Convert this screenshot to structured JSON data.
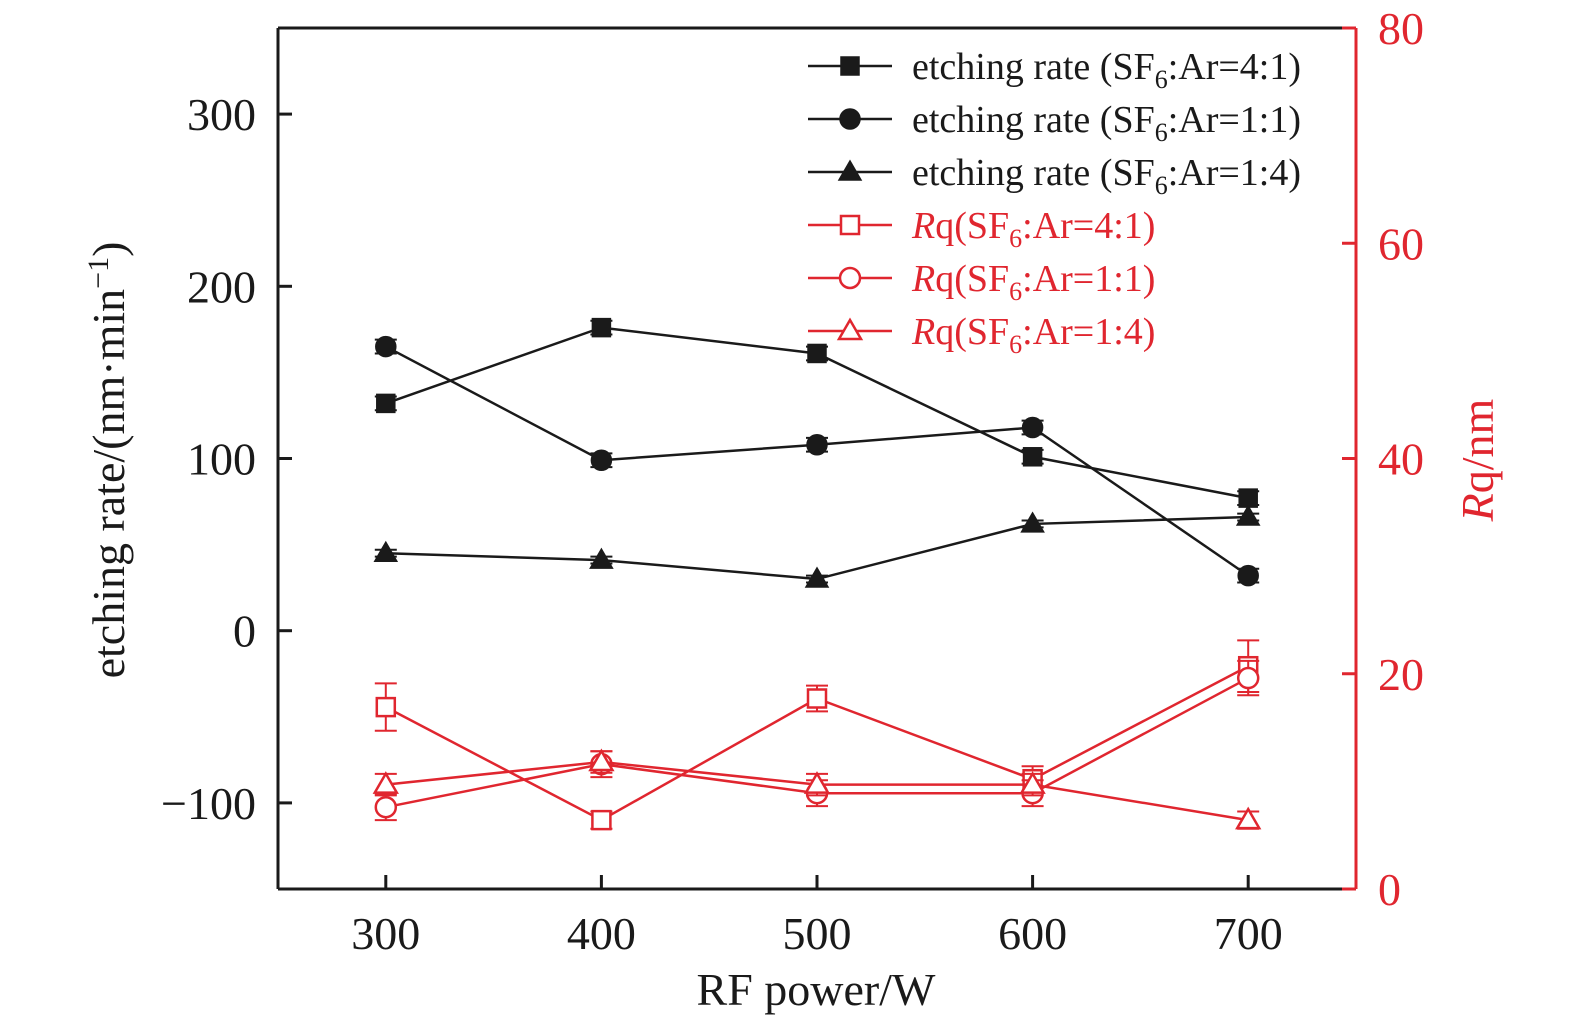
{
  "chart_data": {
    "type": "line",
    "xlabel": "RF power/W",
    "x": [
      300,
      400,
      500,
      600,
      700
    ],
    "xlim": [
      250,
      750
    ],
    "xticks": [
      "300",
      "400",
      "500",
      "600",
      "700"
    ],
    "y_left": {
      "label_prefix": "etching rate/(nm·min",
      "label_sup": "−1",
      "label_suffix": ")",
      "lim": [
        -150,
        350
      ],
      "ticks": [
        300,
        200,
        100,
        0,
        -100
      ],
      "tick_labels": [
        "300",
        "200",
        "100",
        "0",
        "−100"
      ],
      "color": "#1a1a1a"
    },
    "y_right": {
      "label_italic": "R",
      "label_rest": "q/nm",
      "lim": [
        0,
        80
      ],
      "ticks": [
        80,
        60,
        40,
        20,
        0
      ],
      "tick_labels": [
        "80",
        "60",
        "40",
        "20",
        "0"
      ],
      "color": "#e0262f"
    },
    "legend_position": "top-right",
    "series": [
      {
        "name": "etching rate (SF6:Ar=4:1)",
        "legend": {
          "pre": "etching rate (SF",
          "sub": "6",
          "post": ":Ar=4:1)"
        },
        "axis": "left",
        "marker": "square",
        "filled": true,
        "color": "#1a1a1a",
        "values": [
          132,
          176,
          161,
          101,
          77
        ],
        "errors": [
          4,
          4,
          4,
          4,
          4
        ]
      },
      {
        "name": "etching rate (SF6:Ar=1:1)",
        "legend": {
          "pre": "etching rate (SF",
          "sub": "6",
          "post": ":Ar=1:1)"
        },
        "axis": "left",
        "marker": "circle",
        "filled": true,
        "color": "#1a1a1a",
        "values": [
          165,
          99,
          108,
          118,
          32
        ],
        "errors": [
          4,
          4,
          4,
          4,
          4
        ]
      },
      {
        "name": "etching rate (SF6:Ar=1:4)",
        "legend": {
          "pre": "etching rate (SF",
          "sub": "6",
          "post": ":Ar=1:4)"
        },
        "axis": "left",
        "marker": "triangle",
        "filled": true,
        "color": "#1a1a1a",
        "values": [
          45,
          41,
          30,
          62,
          66
        ],
        "errors": [
          2,
          2,
          2,
          2,
          2
        ]
      },
      {
        "name": "Rq(SF6:Ar=4:1)",
        "legend": {
          "ital": "R",
          "pre": "q(SF",
          "sub": "6",
          "post": ":Ar=4:1)"
        },
        "axis": "right",
        "marker": "square",
        "filled": false,
        "color": "#e0262f",
        "values": [
          16.9,
          6.4,
          17.7,
          10.2,
          20.7
        ],
        "errors": [
          2.2,
          0.8,
          1.2,
          1.2,
          2.4
        ]
      },
      {
        "name": "Rq(SF6:Ar=1:1)",
        "legend": {
          "ital": "R",
          "pre": "q(SF",
          "sub": "6",
          "post": ":Ar=1:1)"
        },
        "axis": "right",
        "marker": "circle",
        "filled": false,
        "color": "#e0262f",
        "values": [
          7.6,
          11.6,
          8.9,
          8.9,
          19.6
        ],
        "errors": [
          1.2,
          1.2,
          1.2,
          1.2,
          1.6
        ]
      },
      {
        "name": "Rq(SF6:Ar=1:4)",
        "legend": {
          "ital": "R",
          "pre": "q(SF",
          "sub": "6",
          "post": ":Ar=1:4)"
        },
        "axis": "right",
        "marker": "triangle",
        "filled": false,
        "color": "#e0262f",
        "values": [
          9.7,
          11.8,
          9.7,
          9.7,
          6.4
        ],
        "errors": [
          1.0,
          1.0,
          1.0,
          1.0,
          0.8
        ]
      }
    ]
  }
}
